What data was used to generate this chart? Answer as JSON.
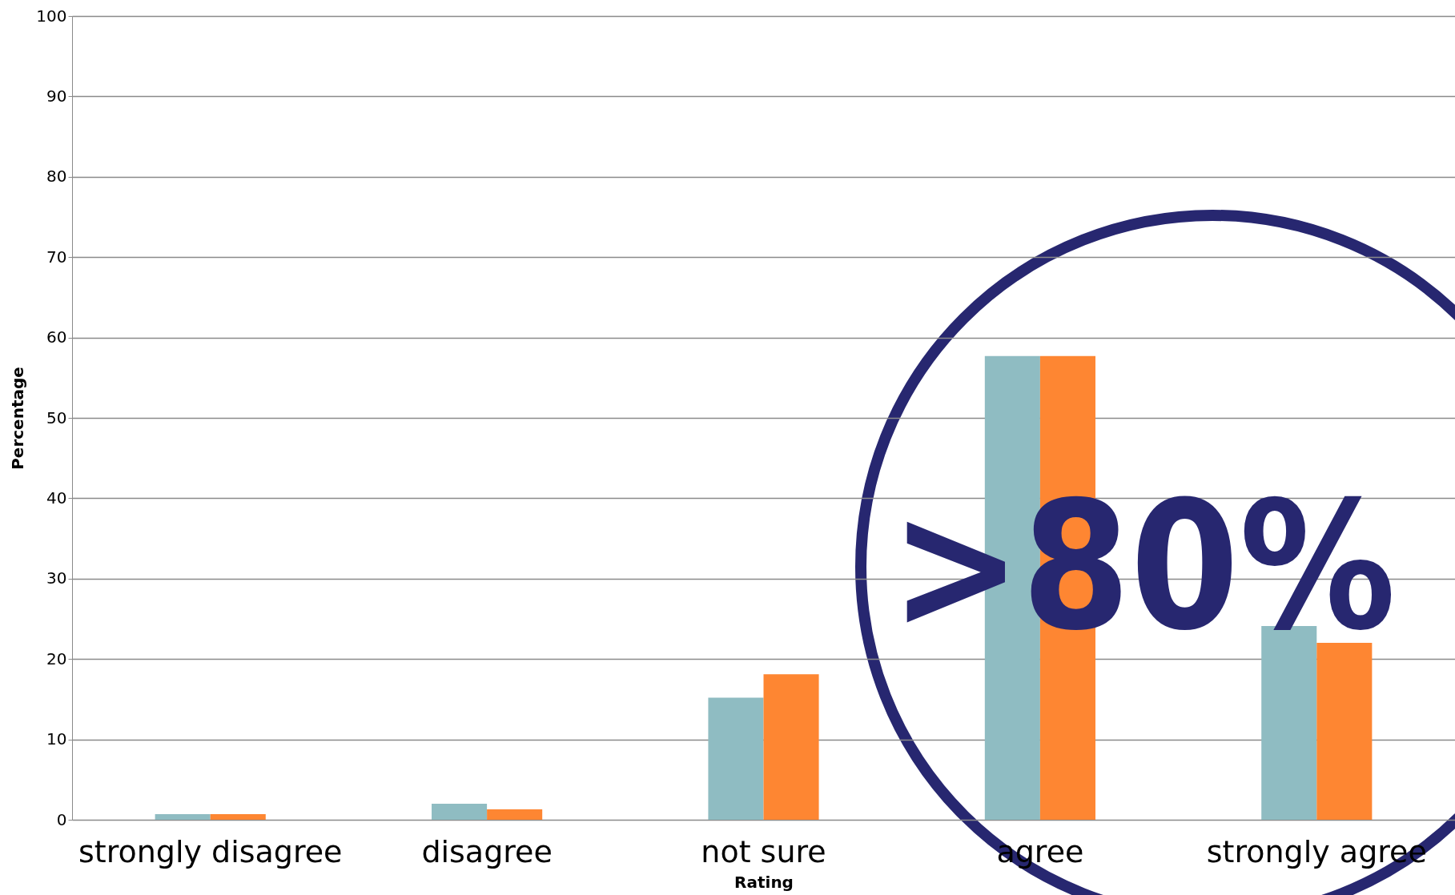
{
  "chart_data": {
    "type": "bar",
    "xlabel": "Rating",
    "ylabel": "Percentage",
    "categories": [
      "strongly disagree",
      "disagree",
      "not sure",
      "agree",
      "strongly agree"
    ],
    "series": [
      {
        "color": "#8fbcc2",
        "values": [
          0.7,
          2,
          15.2,
          57.7,
          24.1
        ]
      },
      {
        "color": "#fe8632",
        "values": [
          0.7,
          1.3,
          18.1,
          57.7,
          22
        ]
      }
    ],
    "ylim": [
      0,
      100
    ],
    "yticks": [
      0,
      10,
      20,
      30,
      40,
      50,
      60,
      70,
      80,
      90,
      100
    ],
    "grid": "y",
    "legend": false,
    "annotations": [
      ">80%"
    ]
  }
}
